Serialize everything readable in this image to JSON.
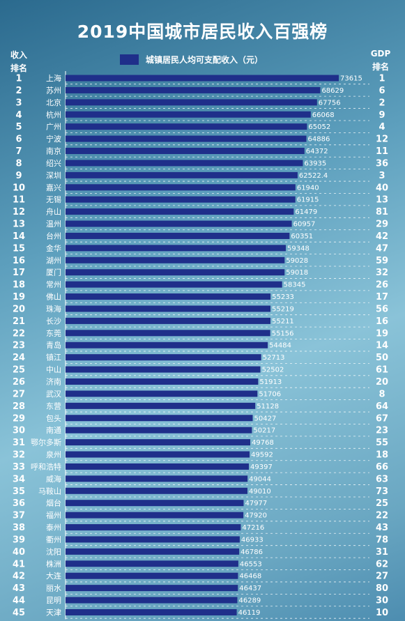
{
  "title": "2019中国城市居民收入百强榜",
  "header_left": "收入\n排名",
  "header_right": "GDP\n排名",
  "legend": {
    "label": "城镇居民人均可支配收入（元）",
    "color": "#1f2f8a"
  },
  "chart_data": {
    "type": "bar",
    "orientation": "horizontal",
    "title": "2019中国城市居民收入百强榜",
    "series": [
      {
        "name": "城镇居民人均可支配收入（元）",
        "color": "#1f2f8a"
      }
    ],
    "xlim": [
      0,
      73615
    ],
    "grid": true,
    "legend_position": "top",
    "rows": [
      {
        "rank": "1",
        "city": "上海",
        "value": 73615,
        "label": "73615",
        "gdp": "1"
      },
      {
        "rank": "2",
        "city": "苏州",
        "value": 68629,
        "label": "68629",
        "gdp": "6"
      },
      {
        "rank": "3",
        "city": "北京",
        "value": 67756,
        "label": "67756",
        "gdp": "2"
      },
      {
        "rank": "4",
        "city": "杭州",
        "value": 66068,
        "label": "66068",
        "gdp": "9"
      },
      {
        "rank": "5",
        "city": "广州",
        "value": 65052,
        "label": "65052",
        "gdp": "4"
      },
      {
        "rank": "6",
        "city": "宁波",
        "value": 64886,
        "label": "64886",
        "gdp": "12"
      },
      {
        "rank": "7",
        "city": "南京",
        "value": 64372,
        "label": "64372",
        "gdp": "11"
      },
      {
        "rank": "8",
        "city": "绍兴",
        "value": 63935,
        "label": "63935",
        "gdp": "36"
      },
      {
        "rank": "9",
        "city": "深圳",
        "value": 62522.4,
        "label": "62522.4",
        "gdp": "3"
      },
      {
        "rank": "10",
        "city": "嘉兴",
        "value": 61940,
        "label": "61940",
        "gdp": "40"
      },
      {
        "rank": "11",
        "city": "无锡",
        "value": 61915,
        "label": "61915",
        "gdp": "13"
      },
      {
        "rank": "12",
        "city": "舟山",
        "value": 61479,
        "label": "61479",
        "gdp": "81"
      },
      {
        "rank": "13",
        "city": "温州",
        "value": 60957,
        "label": "60957",
        "gdp": "29"
      },
      {
        "rank": "14",
        "city": "台州",
        "value": 60351,
        "label": "60351",
        "gdp": "42"
      },
      {
        "rank": "15",
        "city": "金华",
        "value": 59348,
        "label": "59348",
        "gdp": "47"
      },
      {
        "rank": "16",
        "city": "湖州",
        "value": 59028,
        "label": "59028",
        "gdp": "59"
      },
      {
        "rank": "17",
        "city": "厦门",
        "value": 59018,
        "label": "59018",
        "gdp": "32"
      },
      {
        "rank": "18",
        "city": "常州",
        "value": 58345,
        "label": "58345",
        "gdp": "26"
      },
      {
        "rank": "19",
        "city": "佛山",
        "value": 55233,
        "label": "55233",
        "gdp": "17"
      },
      {
        "rank": "20",
        "city": "珠海",
        "value": 55219,
        "label": "55219",
        "gdp": "56"
      },
      {
        "rank": "21",
        "city": "长沙",
        "value": 55211,
        "label": "55211",
        "gdp": "16"
      },
      {
        "rank": "22",
        "city": "东莞",
        "value": 55156,
        "label": "55156",
        "gdp": "19"
      },
      {
        "rank": "23",
        "city": "青岛",
        "value": 54484,
        "label": "54484",
        "gdp": "14"
      },
      {
        "rank": "24",
        "city": "镇江",
        "value": 52713,
        "label": "52713",
        "gdp": "50"
      },
      {
        "rank": "25",
        "city": "中山",
        "value": 52502,
        "label": "52502",
        "gdp": "61"
      },
      {
        "rank": "26",
        "city": "济南",
        "value": 51913,
        "label": "51913",
        "gdp": "20"
      },
      {
        "rank": "27",
        "city": "武汉",
        "value": 51706,
        "label": "51706",
        "gdp": "8"
      },
      {
        "rank": "28",
        "city": "东营",
        "value": 51128,
        "label": "51128",
        "gdp": "64"
      },
      {
        "rank": "29",
        "city": "包头",
        "value": 50427,
        "label": "50427",
        "gdp": "67"
      },
      {
        "rank": "30",
        "city": "南通",
        "value": 50217,
        "label": "50217",
        "gdp": "23"
      },
      {
        "rank": "31",
        "city": "鄂尔多斯",
        "value": 49768,
        "label": "49768",
        "gdp": "55"
      },
      {
        "rank": "32",
        "city": "泉州",
        "value": 49592,
        "label": "49592",
        "gdp": "18"
      },
      {
        "rank": "33",
        "city": "呼和浩特",
        "value": 49397,
        "label": "49397",
        "gdp": "66"
      },
      {
        "rank": "34",
        "city": "威海",
        "value": 49044,
        "label": "49044",
        "gdp": "63"
      },
      {
        "rank": "35",
        "city": "马鞍山",
        "value": 49010,
        "label": "49010",
        "gdp": "73"
      },
      {
        "rank": "36",
        "city": "烟台",
        "value": 47977,
        "label": "47977",
        "gdp": "25"
      },
      {
        "rank": "37",
        "city": "福州",
        "value": 47920,
        "label": "47920",
        "gdp": "22"
      },
      {
        "rank": "38",
        "city": "泰州",
        "value": 47216,
        "label": "47216",
        "gdp": "43"
      },
      {
        "rank": "39",
        "city": "衢州",
        "value": 46933,
        "label": "46933",
        "gdp": "78"
      },
      {
        "rank": "40",
        "city": "沈阳",
        "value": 46786,
        "label": "46786",
        "gdp": "31"
      },
      {
        "rank": "41",
        "city": "株洲",
        "value": 46553,
        "label": "46553",
        "gdp": "62"
      },
      {
        "rank": "42",
        "city": "大连",
        "value": 46468,
        "label": "46468",
        "gdp": "27"
      },
      {
        "rank": "43",
        "city": "丽水",
        "value": 46437,
        "label": "46437",
        "gdp": "80"
      },
      {
        "rank": "44",
        "city": "昆明",
        "value": 46289,
        "label": "46289",
        "gdp": "30"
      },
      {
        "rank": "45",
        "city": "天津",
        "value": 46119,
        "label": "46119",
        "gdp": "10"
      }
    ]
  }
}
